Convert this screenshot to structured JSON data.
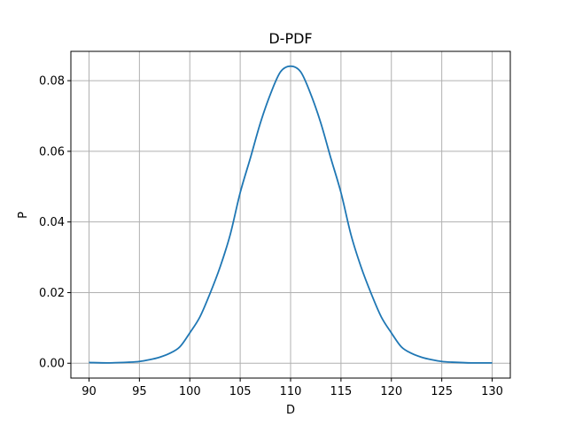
{
  "chart_data": {
    "type": "line",
    "title": "D-PDF",
    "xlabel": "D",
    "ylabel": "P",
    "xlim": [
      88.2,
      131.8
    ],
    "ylim": [
      -0.0042,
      0.0883
    ],
    "xticks": [
      90,
      95,
      100,
      105,
      110,
      115,
      120,
      125,
      130
    ],
    "xtick_labels": [
      "90",
      "95",
      "100",
      "105",
      "110",
      "115",
      "120",
      "125",
      "130"
    ],
    "yticks": [
      0.0,
      0.02,
      0.04,
      0.06,
      0.08
    ],
    "ytick_labels": [
      "0.00",
      "0.02",
      "0.04",
      "0.06",
      "0.08"
    ],
    "grid": true,
    "legend": "none",
    "series": [
      {
        "color": "#1f77b4",
        "x": [
          90,
          92,
          94,
          95,
          96,
          97,
          98,
          99,
          100,
          101,
          102,
          103,
          104,
          105,
          106,
          107,
          108,
          109,
          110,
          111,
          112,
          113,
          114,
          115,
          116,
          117,
          118,
          119,
          120,
          121,
          122,
          123,
          124,
          125,
          126,
          128,
          130
        ],
        "y": [
          0.0002,
          0.0001,
          0.0003,
          0.0005,
          0.001,
          0.0017,
          0.0028,
          0.0046,
          0.0086,
          0.0131,
          0.0197,
          0.0272,
          0.0363,
          0.0483,
          0.058,
          0.068,
          0.0762,
          0.0825,
          0.0841,
          0.0825,
          0.0762,
          0.068,
          0.058,
          0.0483,
          0.0363,
          0.0272,
          0.0197,
          0.0131,
          0.0086,
          0.0046,
          0.0028,
          0.0017,
          0.001,
          0.0005,
          0.0003,
          0.0001,
          0.0001
        ]
      }
    ]
  }
}
